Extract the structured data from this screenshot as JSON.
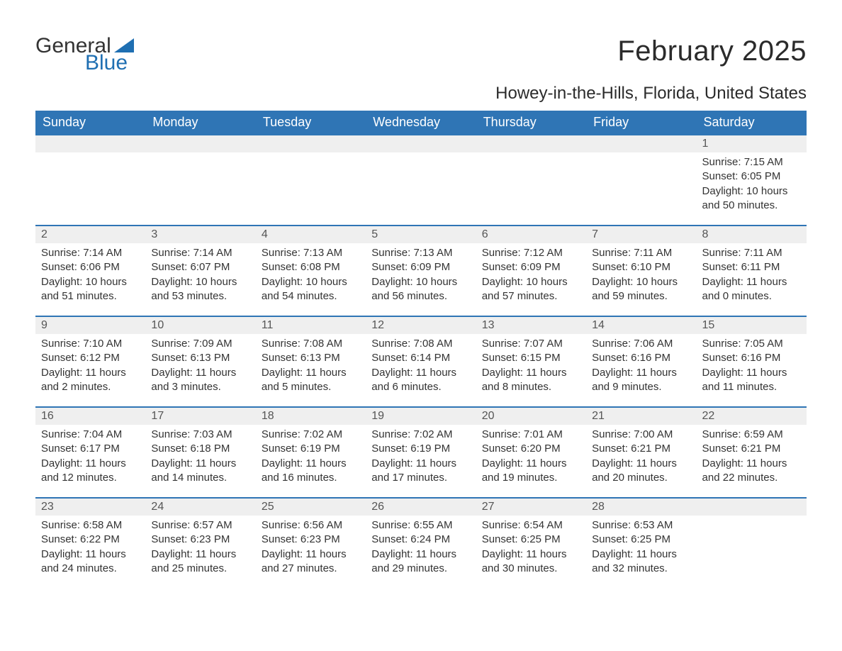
{
  "logo": {
    "word1": "General",
    "word2": "Blue",
    "sail_color": "#1f6fb2"
  },
  "title": "February 2025",
  "location": "Howey-in-the-Hills, Florida, United States",
  "colors": {
    "header_bg": "#2f75b5",
    "header_text": "#ffffff",
    "row_separator": "#2f75b5",
    "daynum_bg": "#efefef",
    "body_text": "#333333"
  },
  "dayNames": [
    "Sunday",
    "Monday",
    "Tuesday",
    "Wednesday",
    "Thursday",
    "Friday",
    "Saturday"
  ],
  "weeks": [
    [
      null,
      null,
      null,
      null,
      null,
      null,
      {
        "n": "1",
        "sunrise": "7:15 AM",
        "sunset": "6:05 PM",
        "daylight": "10 hours and 50 minutes."
      }
    ],
    [
      {
        "n": "2",
        "sunrise": "7:14 AM",
        "sunset": "6:06 PM",
        "daylight": "10 hours and 51 minutes."
      },
      {
        "n": "3",
        "sunrise": "7:14 AM",
        "sunset": "6:07 PM",
        "daylight": "10 hours and 53 minutes."
      },
      {
        "n": "4",
        "sunrise": "7:13 AM",
        "sunset": "6:08 PM",
        "daylight": "10 hours and 54 minutes."
      },
      {
        "n": "5",
        "sunrise": "7:13 AM",
        "sunset": "6:09 PM",
        "daylight": "10 hours and 56 minutes."
      },
      {
        "n": "6",
        "sunrise": "7:12 AM",
        "sunset": "6:09 PM",
        "daylight": "10 hours and 57 minutes."
      },
      {
        "n": "7",
        "sunrise": "7:11 AM",
        "sunset": "6:10 PM",
        "daylight": "10 hours and 59 minutes."
      },
      {
        "n": "8",
        "sunrise": "7:11 AM",
        "sunset": "6:11 PM",
        "daylight": "11 hours and 0 minutes."
      }
    ],
    [
      {
        "n": "9",
        "sunrise": "7:10 AM",
        "sunset": "6:12 PM",
        "daylight": "11 hours and 2 minutes."
      },
      {
        "n": "10",
        "sunrise": "7:09 AM",
        "sunset": "6:13 PM",
        "daylight": "11 hours and 3 minutes."
      },
      {
        "n": "11",
        "sunrise": "7:08 AM",
        "sunset": "6:13 PM",
        "daylight": "11 hours and 5 minutes."
      },
      {
        "n": "12",
        "sunrise": "7:08 AM",
        "sunset": "6:14 PM",
        "daylight": "11 hours and 6 minutes."
      },
      {
        "n": "13",
        "sunrise": "7:07 AM",
        "sunset": "6:15 PM",
        "daylight": "11 hours and 8 minutes."
      },
      {
        "n": "14",
        "sunrise": "7:06 AM",
        "sunset": "6:16 PM",
        "daylight": "11 hours and 9 minutes."
      },
      {
        "n": "15",
        "sunrise": "7:05 AM",
        "sunset": "6:16 PM",
        "daylight": "11 hours and 11 minutes."
      }
    ],
    [
      {
        "n": "16",
        "sunrise": "7:04 AM",
        "sunset": "6:17 PM",
        "daylight": "11 hours and 12 minutes."
      },
      {
        "n": "17",
        "sunrise": "7:03 AM",
        "sunset": "6:18 PM",
        "daylight": "11 hours and 14 minutes."
      },
      {
        "n": "18",
        "sunrise": "7:02 AM",
        "sunset": "6:19 PM",
        "daylight": "11 hours and 16 minutes."
      },
      {
        "n": "19",
        "sunrise": "7:02 AM",
        "sunset": "6:19 PM",
        "daylight": "11 hours and 17 minutes."
      },
      {
        "n": "20",
        "sunrise": "7:01 AM",
        "sunset": "6:20 PM",
        "daylight": "11 hours and 19 minutes."
      },
      {
        "n": "21",
        "sunrise": "7:00 AM",
        "sunset": "6:21 PM",
        "daylight": "11 hours and 20 minutes."
      },
      {
        "n": "22",
        "sunrise": "6:59 AM",
        "sunset": "6:21 PM",
        "daylight": "11 hours and 22 minutes."
      }
    ],
    [
      {
        "n": "23",
        "sunrise": "6:58 AM",
        "sunset": "6:22 PM",
        "daylight": "11 hours and 24 minutes."
      },
      {
        "n": "24",
        "sunrise": "6:57 AM",
        "sunset": "6:23 PM",
        "daylight": "11 hours and 25 minutes."
      },
      {
        "n": "25",
        "sunrise": "6:56 AM",
        "sunset": "6:23 PM",
        "daylight": "11 hours and 27 minutes."
      },
      {
        "n": "26",
        "sunrise": "6:55 AM",
        "sunset": "6:24 PM",
        "daylight": "11 hours and 29 minutes."
      },
      {
        "n": "27",
        "sunrise": "6:54 AM",
        "sunset": "6:25 PM",
        "daylight": "11 hours and 30 minutes."
      },
      {
        "n": "28",
        "sunrise": "6:53 AM",
        "sunset": "6:25 PM",
        "daylight": "11 hours and 32 minutes."
      },
      null
    ]
  ],
  "labels": {
    "sunrise": "Sunrise:",
    "sunset": "Sunset:",
    "daylight": "Daylight:"
  }
}
